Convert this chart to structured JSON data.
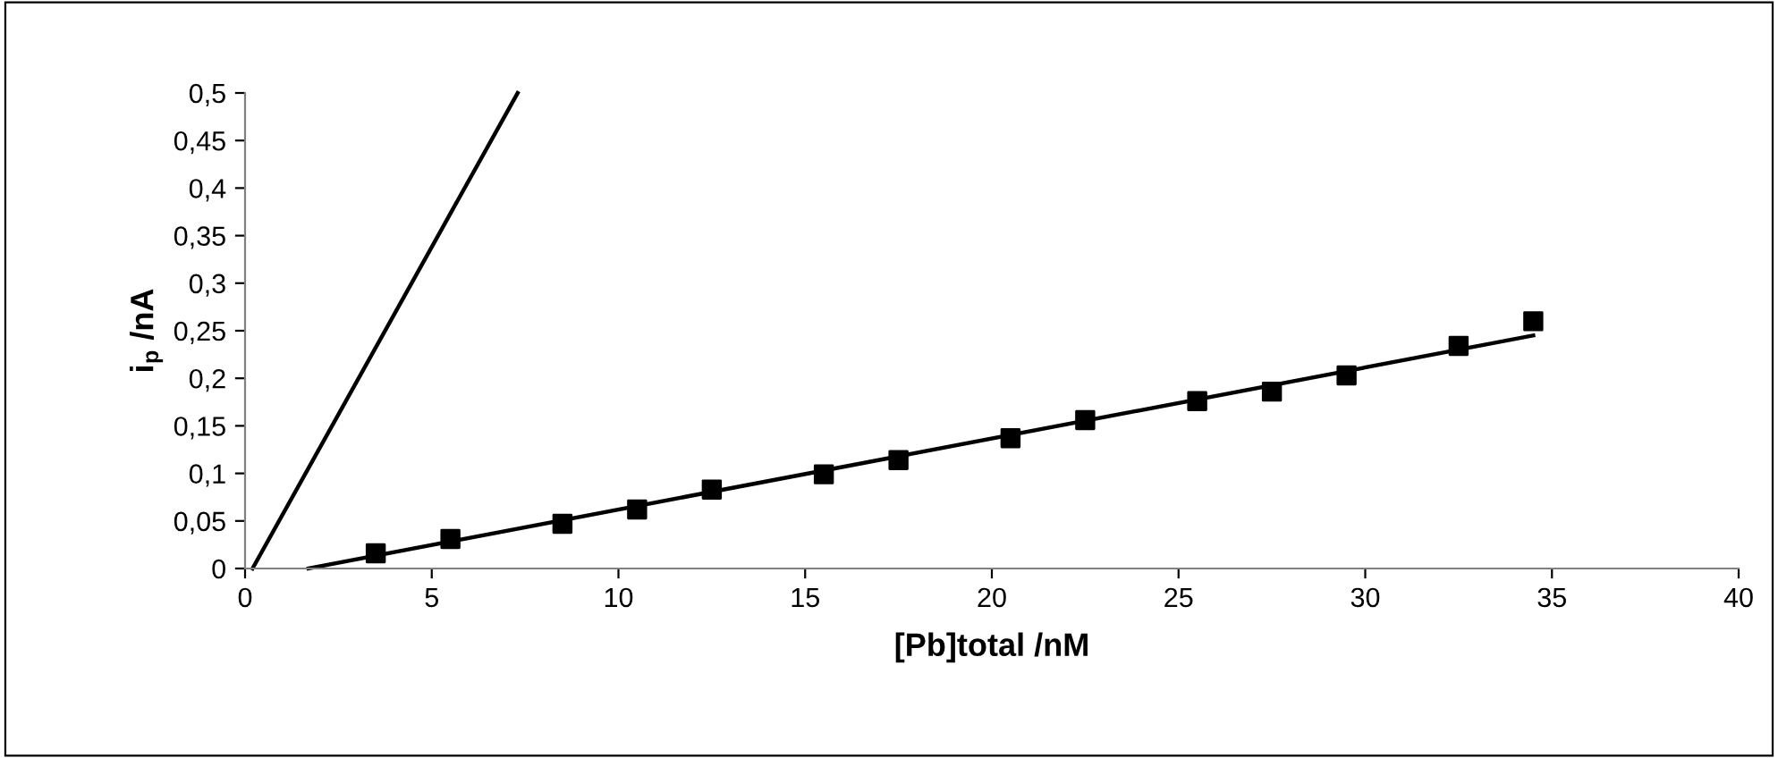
{
  "chart_data": {
    "type": "scatter",
    "xlabel": "[Pb]total /nM",
    "ylabel": "i$_{p}$ /nA",
    "xlim": [
      0,
      40
    ],
    "xticks": [
      0,
      5,
      10,
      15,
      20,
      25,
      30,
      35,
      40
    ],
    "ylim": [
      0,
      0.5
    ],
    "yticks": [
      {
        "value": 0,
        "label": "0"
      },
      {
        "value": 0.05,
        "label": "0,05"
      },
      {
        "value": 0.1,
        "label": "0,1"
      },
      {
        "value": 0.15,
        "label": "0,15"
      },
      {
        "value": 0.2,
        "label": "0,2"
      },
      {
        "value": 0.25,
        "label": "0,25"
      },
      {
        "value": 0.3,
        "label": "0,3"
      },
      {
        "value": 0.35,
        "label": "0,35"
      },
      {
        "value": 0.4,
        "label": "0,4"
      },
      {
        "value": 0.45,
        "label": "0,45"
      },
      {
        "value": 0.5,
        "label": "0,5"
      }
    ],
    "grid": false,
    "legend": false,
    "series": [
      {
        "marker": "square",
        "color": "#000000",
        "x": [
          3.5,
          5.5,
          8.5,
          10.5,
          12.5,
          15.5,
          17.5,
          20.5,
          22.5,
          25.5,
          27.5,
          29.5,
          32.5,
          34.5
        ],
        "values": [
          0.016,
          0.031,
          0.047,
          0.062,
          0.083,
          0.099,
          0.114,
          0.137,
          0.156,
          0.176,
          0.186,
          0.203,
          0.234,
          0.26
        ]
      },
      {
        "type": "line",
        "marker": "none",
        "line_style": "solid",
        "color": "#000000",
        "x": [
          1.7,
          34.5
        ],
        "values": [
          0,
          0.245
        ]
      },
      {
        "type": "line",
        "marker": "none",
        "line_style": "solid",
        "color": "#000000",
        "x": [
          0.2,
          7.3
        ],
        "values": [
          0,
          0.5
        ]
      }
    ]
  }
}
